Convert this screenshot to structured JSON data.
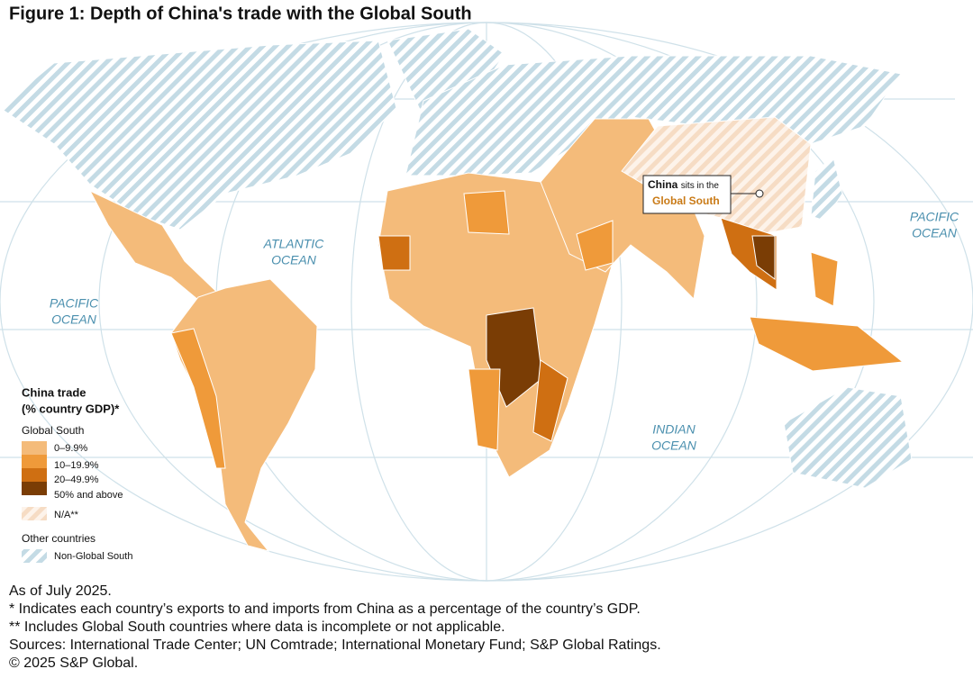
{
  "title": "Figure 1: Depth of China's trade with the Global South",
  "oceans": [
    {
      "lines": [
        "PACIFIC",
        "OCEAN"
      ]
    },
    {
      "lines": [
        "ATLANTIC",
        "OCEAN"
      ]
    },
    {
      "lines": [
        "INDIAN",
        "OCEAN"
      ]
    },
    {
      "lines": [
        "PACIFIC",
        "OCEAN"
      ]
    }
  ],
  "callout": {
    "bold": "China",
    "middle": "sits in the",
    "highlight": "Global South"
  },
  "legend": {
    "title": [
      "China trade",
      "(% country GDP)*"
    ],
    "group1": "Global South",
    "items": [
      "0–9.9%",
      "10–19.9%",
      "20–49.9%",
      "50% and above"
    ],
    "na": "N/A**",
    "group2": "Other countries",
    "other": "Non-Global South"
  },
  "footnotes": [
    "As of July 2025.",
    "* Indicates each country’s exports to and imports from China as a percentage of the country’s GDP.",
    "** Includes Global South countries where data is incomplete or not applicable.",
    "Sources: International Trade Center; UN Comtrade; International Monetary Fund; S&P Global Ratings.",
    "© 2025 S&P Global."
  ]
}
